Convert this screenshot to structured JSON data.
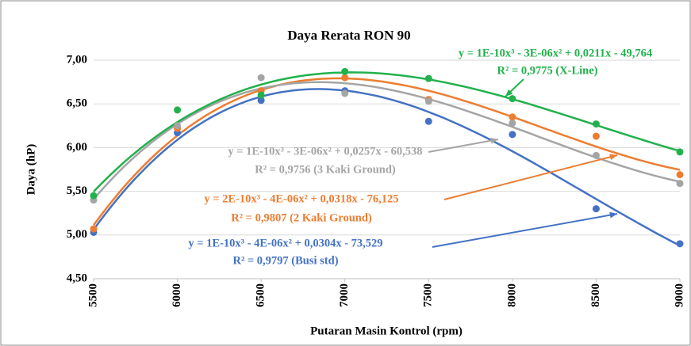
{
  "chart_data": {
    "type": "scatter",
    "title": "Daya Rerata RON 90",
    "x_label": "Putaran Masin Kontrol (rpm)",
    "y_label": "Daya (hP)",
    "x": [
      5500,
      6000,
      6500,
      7000,
      7500,
      8000,
      8500,
      9000
    ],
    "xlim": [
      5500,
      9000
    ],
    "xticks": [
      5500,
      6000,
      6500,
      7000,
      7500,
      8000,
      8500,
      9000
    ],
    "ylim": [
      4.5,
      7.0
    ],
    "yticks": [
      {
        "value": 4.5,
        "label": "4,50"
      },
      {
        "value": 5.0,
        "label": "5,00"
      },
      {
        "value": 5.5,
        "label": "5,50"
      },
      {
        "value": 6.0,
        "label": "6,00"
      },
      {
        "value": 6.5,
        "label": "6,50"
      },
      {
        "value": 7.0,
        "label": "7,00"
      }
    ],
    "grid": true,
    "trendline": "polynomial-3",
    "series": [
      {
        "name": "Busi std",
        "color": "#4472c4",
        "values": [
          5.03,
          6.17,
          6.54,
          6.65,
          6.3,
          6.15,
          5.3,
          4.9
        ]
      },
      {
        "name": "2 Kaki Ground",
        "color": "#ed7d31",
        "values": [
          5.07,
          6.22,
          6.65,
          6.8,
          6.55,
          6.35,
          6.13,
          5.69
        ]
      },
      {
        "name": "3 Kaki Ground",
        "color": "#a5a5a5",
        "values": [
          5.4,
          6.25,
          6.8,
          6.62,
          6.53,
          6.28,
          5.91,
          5.59
        ]
      },
      {
        "name": "X-Line",
        "color": "#22b14c",
        "values": [
          5.45,
          6.43,
          6.6,
          6.87,
          6.79,
          6.56,
          6.27,
          5.95
        ]
      }
    ],
    "annotations": [
      {
        "lines": [
          "y = 1E-10x³ - 3E-06x² + 0,0211x - 49,764",
          "R² = 0,9775 (X-Line)"
        ],
        "color": "#22b14c"
      },
      {
        "lines": [
          "y = 1E-10x³ - 3E-06x² + 0,0257x - 60,538",
          "R² = 0,9756 (3 Kaki Ground)"
        ],
        "color": "#a5a5a5"
      },
      {
        "lines": [
          "y = 2E-10x³ - 4E-06x² + 0,0318x - 76,125",
          "R² = 0,9807 (2 Kaki Ground)"
        ],
        "color": "#ed7d31"
      },
      {
        "lines": [
          "y = 1E-10x³ - 4E-06x² + 0,0304x - 73,529",
          "R² = 0,9797 (Busi std)"
        ],
        "color": "#4472c4"
      }
    ]
  }
}
